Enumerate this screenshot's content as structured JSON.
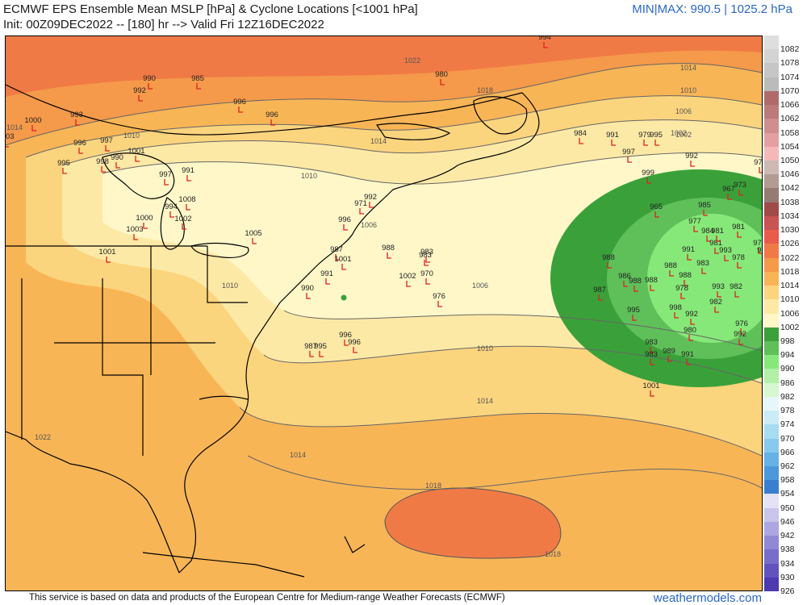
{
  "header": {
    "title": "ECMWF EPS Ensemble Mean MSLP [hPa] & Cyclone Locations [<1001 hPa]",
    "init": "Init: 00Z09DEC2022 -- [180] hr --> Valid Fri 12Z16DEC2022",
    "minmax": "MIN|MAX: 990.5 | 1025.2 hPa"
  },
  "footer": {
    "attribution": "This service is based on data and products of the European Centre for Medium-range Weather Forecasts (ECMWF)",
    "brand": "weathermodels.com"
  },
  "colorbar": {
    "levels": [
      {
        "label": "1082",
        "color": "#dedede"
      },
      {
        "label": "1078",
        "color": "#d3d3d3"
      },
      {
        "label": "1074",
        "color": "#c6c6c6"
      },
      {
        "label": "1070",
        "color": "#bbbbbb"
      },
      {
        "label": "1066",
        "color": "#b06a6a"
      },
      {
        "label": "1062",
        "color": "#bd7a7a"
      },
      {
        "label": "1058",
        "color": "#d08e8e"
      },
      {
        "label": "1054",
        "color": "#e4a0a0"
      },
      {
        "label": "1050",
        "color": "#f3b9b9"
      },
      {
        "label": "1046",
        "color": "#ccb9b1"
      },
      {
        "label": "1042",
        "color": "#b29b92"
      },
      {
        "label": "1038",
        "color": "#957b72"
      },
      {
        "label": "1034",
        "color": "#a14a4a"
      },
      {
        "label": "1030",
        "color": "#c85454"
      },
      {
        "label": "1026",
        "color": "#ea5c4a"
      },
      {
        "label": "1022",
        "color": "#f07a46"
      },
      {
        "label": "1018",
        "color": "#f5994a"
      },
      {
        "label": "1014",
        "color": "#f8b556"
      },
      {
        "label": "1010",
        "color": "#fbd47e"
      },
      {
        "label": "1006",
        "color": "#fde9a6"
      },
      {
        "label": "1002",
        "color": "#fff7c8"
      },
      {
        "label": "998",
        "color": "#3aa13a"
      },
      {
        "label": "994",
        "color": "#5fc05a"
      },
      {
        "label": "990",
        "color": "#86e878"
      },
      {
        "label": "986",
        "color": "#b2f0a8"
      },
      {
        "label": "982",
        "color": "#d7f7d0"
      },
      {
        "label": "978",
        "color": "#e6f6fb"
      },
      {
        "label": "974",
        "color": "#c9ecf7"
      },
      {
        "label": "970",
        "color": "#a8dcf2"
      },
      {
        "label": "966",
        "color": "#88c9ee"
      },
      {
        "label": "962",
        "color": "#66b1e6"
      },
      {
        "label": "958",
        "color": "#4c98db"
      },
      {
        "label": "954",
        "color": "#3a7fcf"
      },
      {
        "label": "950",
        "color": "#e4e2f4"
      },
      {
        "label": "946",
        "color": "#c9c5ec"
      },
      {
        "label": "942",
        "color": "#aca6e1"
      },
      {
        "label": "938",
        "color": "#9089d6"
      },
      {
        "label": "934",
        "color": "#776dca"
      },
      {
        "label": "930",
        "color": "#6152bd"
      },
      {
        "label": "926",
        "color": "#4c3aae"
      }
    ]
  },
  "isobar_labels": [
    "1002",
    "1006",
    "1010",
    "1014",
    "1018",
    "1022"
  ],
  "cyclones": [
    "980",
    "994",
    "990",
    "992",
    "985",
    "996",
    "996",
    "1000",
    "993",
    "1003",
    "996",
    "997",
    "1001",
    "995",
    "998",
    "990",
    "997",
    "991",
    "1008",
    "994",
    "1002",
    "1000",
    "1003",
    "1001",
    "1005",
    "971",
    "992",
    "996",
    "983",
    "991",
    "988",
    "987",
    "1001",
    "990",
    "981",
    "976",
    "984",
    "991",
    "979",
    "995",
    "997",
    "992",
    "999",
    "978",
    "967",
    "973",
    "965",
    "985",
    "977",
    "981",
    "981",
    "988",
    "983",
    "991",
    "987",
    "986",
    "993",
    "978",
    "970",
    "979",
    "977",
    "988",
    "992",
    "998",
    "1002",
    "983",
    "984",
    "988",
    "982",
    "988",
    "993",
    "978",
    "982",
    "976",
    "992",
    "983",
    "989",
    "991",
    "1001",
    "996",
    "996",
    "995",
    "987",
    "995",
    "980",
    "983",
    "988"
  ]
}
